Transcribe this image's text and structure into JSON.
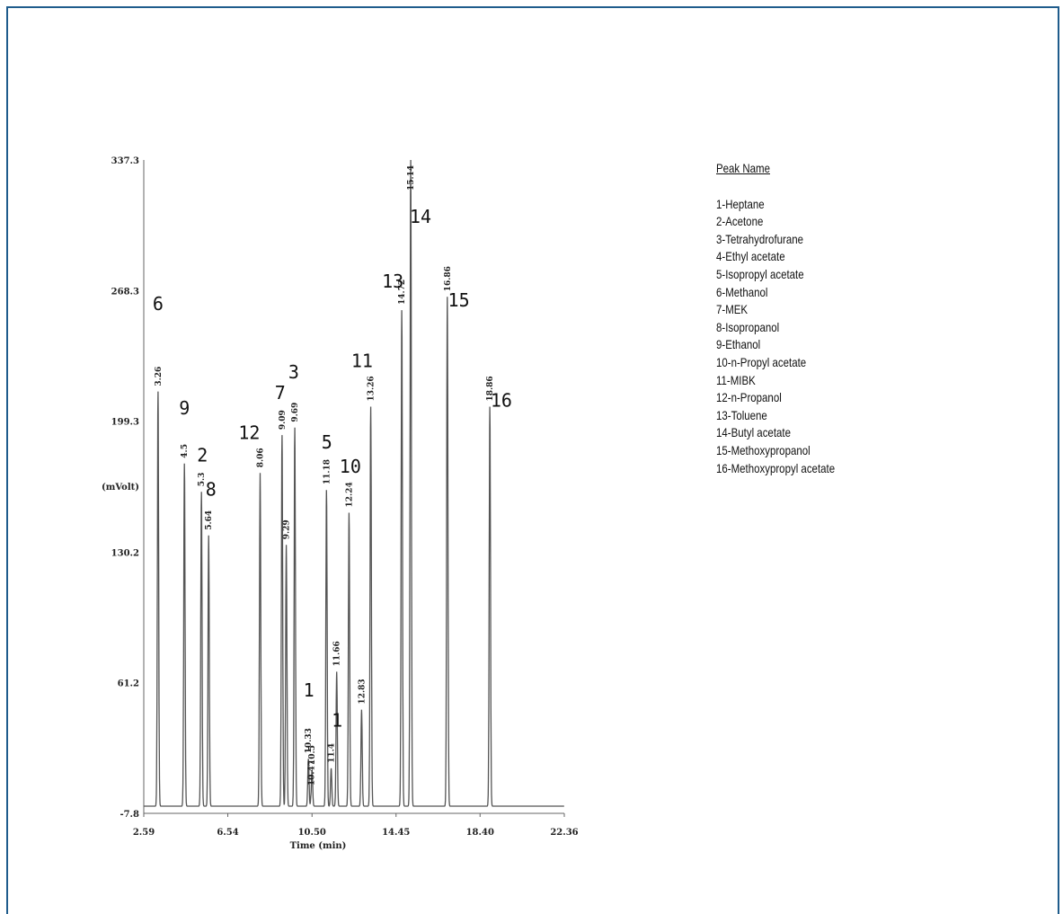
{
  "chart_data": {
    "type": "line",
    "xlabel": "Time (min)",
    "ylabel": "(mVolt)",
    "xlim": [
      2.59,
      22.36
    ],
    "ylim": [
      -7.8,
      337.3
    ],
    "x_ticks": [
      "2.59",
      "6.54",
      "10.50",
      "14.45",
      "18.40",
      "22.36"
    ],
    "y_ticks": [
      {
        "value": -7.8,
        "label": "-7.8"
      },
      {
        "value": 61.2,
        "label": "61.2"
      },
      {
        "value": 130.2,
        "label": "130.2"
      },
      {
        "value": 165.0,
        "label": "(mVolt)"
      },
      {
        "value": 199.3,
        "label": "199.3"
      },
      {
        "value": 268.3,
        "label": "268.3"
      }
    ],
    "ymax_label": "337.3",
    "peaks": [
      {
        "rt": 3.26,
        "height": 215,
        "rt_label": "3.26",
        "num": "6",
        "num_rt": 3.26,
        "num_y": 258
      },
      {
        "rt": 4.5,
        "height": 177,
        "rt_label": "4.5",
        "num": "9",
        "num_rt": 4.5,
        "num_y": 203
      },
      {
        "rt": 5.3,
        "height": 162,
        "rt_label": "5.3",
        "num": "2",
        "num_rt": 5.35,
        "num_y": 178
      },
      {
        "rt": 5.64,
        "height": 139,
        "rt_label": "5.64",
        "num": "8",
        "num_rt": 5.75,
        "num_y": 160
      },
      {
        "rt": 8.06,
        "height": 172,
        "rt_label": "8.06",
        "num": "12",
        "num_rt": 7.55,
        "num_y": 190
      },
      {
        "rt": 9.09,
        "height": 192,
        "rt_label": "9.09",
        "num": "7",
        "num_rt": 9.0,
        "num_y": 211
      },
      {
        "rt": 9.29,
        "height": 134,
        "rt_label": "9.29",
        "num": "",
        "num_rt": 0,
        "num_y": 0
      },
      {
        "rt": 9.69,
        "height": 196,
        "rt_label": "9.69",
        "num": "3",
        "num_rt": 9.64,
        "num_y": 222
      },
      {
        "rt": 10.33,
        "height": 21,
        "rt_label": "10.33",
        "num": "1",
        "num_rt": 10.35,
        "num_y": 54
      },
      {
        "rt": 10.47,
        "height": 4,
        "rt_label": "10.47",
        "num": "",
        "num_rt": 0,
        "num_y": 0
      },
      {
        "rt": 10.5,
        "height": 15,
        "rt_label": "10.5",
        "num": "",
        "num_rt": 0,
        "num_y": 0
      },
      {
        "rt": 11.18,
        "height": 163,
        "rt_label": "11.18",
        "num": "5",
        "num_rt": 11.2,
        "num_y": 185
      },
      {
        "rt": 11.4,
        "height": 16,
        "rt_label": "11.4",
        "num": "",
        "num_rt": 0,
        "num_y": 0
      },
      {
        "rt": 11.66,
        "height": 67,
        "rt_label": "11.66",
        "num": "1",
        "num_rt": 11.68,
        "num_y": 38
      },
      {
        "rt": 12.24,
        "height": 151,
        "rt_label": "12.24",
        "num": "10",
        "num_rt": 12.3,
        "num_y": 172
      },
      {
        "rt": 12.83,
        "height": 47,
        "rt_label": "12.83",
        "num": "",
        "num_rt": 0,
        "num_y": 0
      },
      {
        "rt": 13.26,
        "height": 207,
        "rt_label": "13.26",
        "num": "11",
        "num_rt": 12.85,
        "num_y": 228
      },
      {
        "rt": 14.72,
        "height": 258,
        "rt_label": "14.72",
        "num": "13",
        "num_rt": 14.3,
        "num_y": 270
      },
      {
        "rt": 15.14,
        "height": 337.3,
        "rt_label": "15.14",
        "num": "14",
        "num_rt": 15.6,
        "num_y": 304
      },
      {
        "rt": 16.86,
        "height": 265,
        "rt_label": "16.86",
        "num": "15",
        "num_rt": 17.4,
        "num_y": 260
      },
      {
        "rt": 18.86,
        "height": 207,
        "rt_label": "18.86",
        "num": "16",
        "num_rt": 19.4,
        "num_y": 207
      }
    ]
  },
  "legend": {
    "title": "Peak Name",
    "items": [
      "1-Heptane",
      "2-Acetone",
      "3-Tetrahydrofurane",
      "4-Ethyl acetate",
      "5-Isopropyl acetate",
      "6-Methanol",
      "7-MEK",
      "8-Isopropanol",
      "9-Ethanol",
      "10-n-Propyl acetate",
      "11-MIBK",
      "12-n-Propanol",
      "13-Toluene",
      "14-Butyl acetate",
      "15-Methoxypropanol",
      "16-Methoxypropyl acetate"
    ]
  },
  "colors": {
    "frame": "#1f5c8c",
    "trace": "#555555",
    "text": "#111111"
  }
}
